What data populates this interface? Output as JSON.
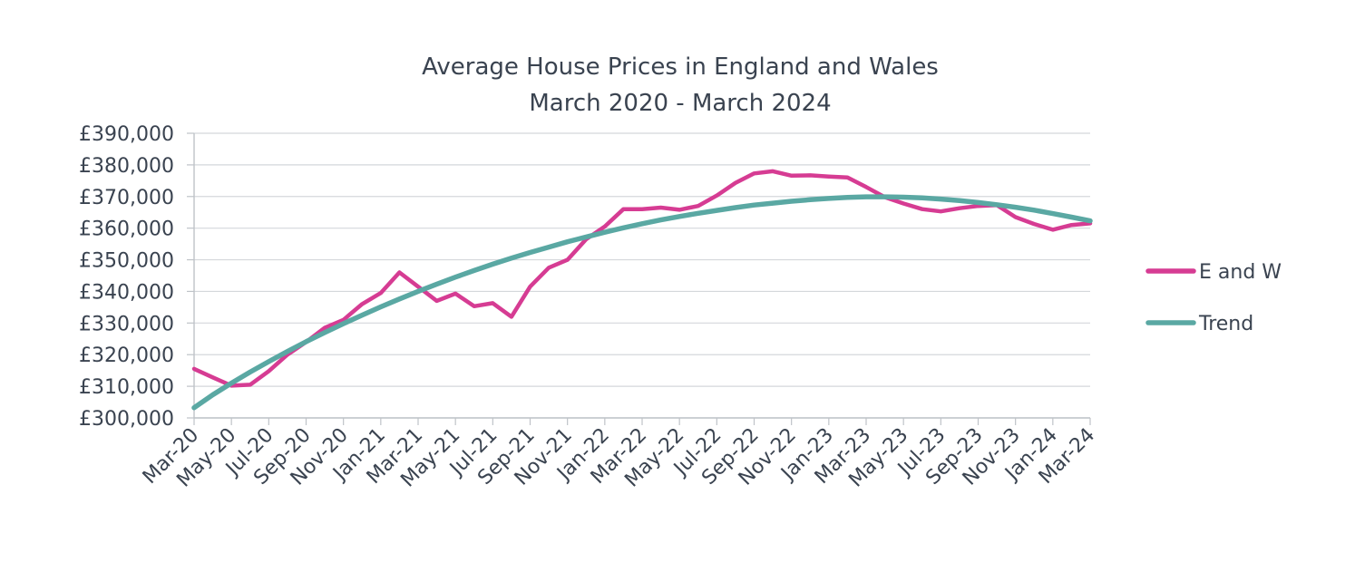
{
  "chart_data": {
    "type": "line",
    "title": "Average House Prices in England and Wales",
    "subtitle": "March 2020 - March 2024",
    "xlabel": "",
    "ylabel": "",
    "ylim": [
      300000,
      390000
    ],
    "y_tick_labels": [
      "£300,000",
      "£310,000",
      "£320,000",
      "£330,000",
      "£340,000",
      "£350,000",
      "£360,000",
      "£370,000",
      "£380,000",
      "£390,000"
    ],
    "y_tick_values": [
      300000,
      310000,
      320000,
      330000,
      340000,
      350000,
      360000,
      370000,
      380000,
      390000
    ],
    "x_tick_labels": [
      "Mar-20",
      "May-20",
      "Jul-20",
      "Sep-20",
      "Nov-20",
      "Jan-21",
      "Mar-21",
      "May-21",
      "Jul-21",
      "Sep-21",
      "Nov-21",
      "Jan-22",
      "Mar-22",
      "May-22",
      "Jul-22",
      "Sep-22",
      "Nov-22",
      "Jan-23",
      "Mar-23",
      "May-23",
      "Jul-23",
      "Sep-23",
      "Nov-23",
      "Jan-24",
      "Mar-24"
    ],
    "x": [
      "Mar-20",
      "Apr-20",
      "May-20",
      "Jun-20",
      "Jul-20",
      "Aug-20",
      "Sep-20",
      "Oct-20",
      "Nov-20",
      "Dec-20",
      "Jan-21",
      "Feb-21",
      "Mar-21",
      "Apr-21",
      "May-21",
      "Jun-21",
      "Jul-21",
      "Aug-21",
      "Sep-21",
      "Oct-21",
      "Nov-21",
      "Dec-21",
      "Jan-22",
      "Feb-22",
      "Mar-22",
      "Apr-22",
      "May-22",
      "Jun-22",
      "Jul-22",
      "Aug-22",
      "Sep-22",
      "Oct-22",
      "Nov-22",
      "Dec-22",
      "Jan-23",
      "Feb-23",
      "Mar-23",
      "Apr-23",
      "May-23",
      "Jun-23",
      "Jul-23",
      "Aug-23",
      "Sep-23",
      "Oct-23",
      "Nov-23",
      "Dec-23",
      "Jan-24",
      "Feb-24",
      "Mar-24"
    ],
    "grid": true,
    "legend_position": "right",
    "series": [
      {
        "name": "E and W",
        "color": "#d63c93",
        "values": [
          315500,
          312800,
          310200,
          310500,
          314800,
          320000,
          324000,
          328500,
          331000,
          336000,
          339500,
          346000,
          341500,
          337000,
          339300,
          335300,
          336300,
          332000,
          341500,
          347500,
          350000,
          356500,
          360500,
          366000,
          366000,
          366500,
          365800,
          367000,
          370300,
          374300,
          377300,
          378000,
          376600,
          376700,
          376300,
          376000,
          373000,
          369800,
          367800,
          366000,
          365300,
          366300,
          367000,
          367300,
          363500,
          361300,
          359500,
          361000,
          361500
        ]
      },
      {
        "name": "Trend",
        "color": "#5aa8a3",
        "values": [
          303200,
          307300,
          311000,
          314500,
          317800,
          321000,
          324100,
          327000,
          329800,
          332500,
          335100,
          337600,
          340000,
          342300,
          344500,
          346600,
          348600,
          350500,
          352300,
          354000,
          355700,
          357200,
          358700,
          360100,
          361400,
          362600,
          363700,
          364700,
          365600,
          366500,
          367300,
          367900,
          368500,
          369000,
          369400,
          369700,
          369900,
          369900,
          369800,
          369600,
          369200,
          368700,
          368100,
          367400,
          366600,
          365700,
          364600,
          363500,
          362300
        ]
      }
    ]
  }
}
